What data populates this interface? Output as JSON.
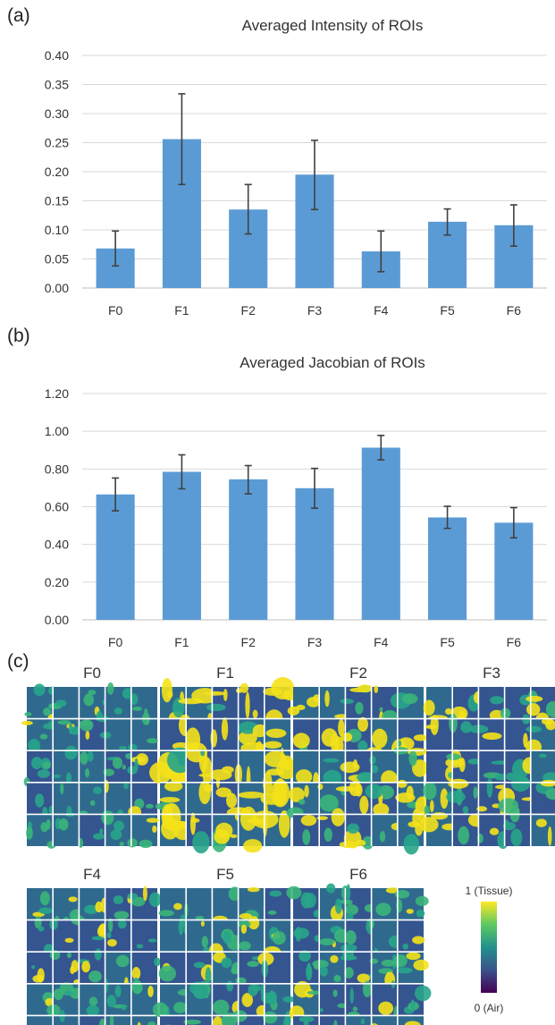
{
  "panels": {
    "a": "(a)",
    "b": "(b)",
    "c": "(c)"
  },
  "chart_data": [
    {
      "type": "bar",
      "title": "Averaged Intensity of ROIs",
      "categories": [
        "F0",
        "F1",
        "F2",
        "F3",
        "F4",
        "F5",
        "F6"
      ],
      "values": [
        0.068,
        0.256,
        0.135,
        0.195,
        0.063,
        0.114,
        0.108
      ],
      "error_low": [
        0.038,
        0.178,
        0.093,
        0.135,
        0.028,
        0.091,
        0.072
      ],
      "error_high": [
        0.098,
        0.334,
        0.178,
        0.254,
        0.098,
        0.136,
        0.143
      ],
      "ylim": [
        0,
        0.4
      ],
      "yticks": [
        "0.00",
        "0.05",
        "0.10",
        "0.15",
        "0.20",
        "0.25",
        "0.30",
        "0.35",
        "0.40"
      ],
      "ytick_values": [
        0,
        0.05,
        0.1,
        0.15,
        0.2,
        0.25,
        0.3,
        0.35,
        0.4
      ],
      "grid": true,
      "color": "#5b9bd5"
    },
    {
      "type": "bar",
      "title": "Averaged Jacobian of ROIs",
      "categories": [
        "F0",
        "F1",
        "F2",
        "F3",
        "F4",
        "F5",
        "F6"
      ],
      "values": [
        0.665,
        0.785,
        0.745,
        0.698,
        0.913,
        0.543,
        0.515
      ],
      "error_low": [
        0.578,
        0.695,
        0.668,
        0.592,
        0.848,
        0.485,
        0.435
      ],
      "error_high": [
        0.752,
        0.875,
        0.818,
        0.803,
        0.978,
        0.602,
        0.595
      ],
      "ylim": [
        0,
        1.2
      ],
      "yticks": [
        "0.00",
        "0.20",
        "0.40",
        "0.60",
        "0.80",
        "1.00",
        "1.20"
      ],
      "ytick_values": [
        0,
        0.2,
        0.4,
        0.6,
        0.8,
        1.0,
        1.2
      ],
      "grid": true,
      "color": "#5b9bd5"
    }
  ],
  "roi_grids": {
    "labels": [
      "F0",
      "F1",
      "F2",
      "F3",
      "F4",
      "F5",
      "F6"
    ],
    "colormap": [
      "#440154",
      "#3b528b",
      "#21918c",
      "#5ec962",
      "#fde725"
    ],
    "colorbar_top": "1 (Tissue)",
    "colorbar_bottom": "0 (Air)"
  }
}
